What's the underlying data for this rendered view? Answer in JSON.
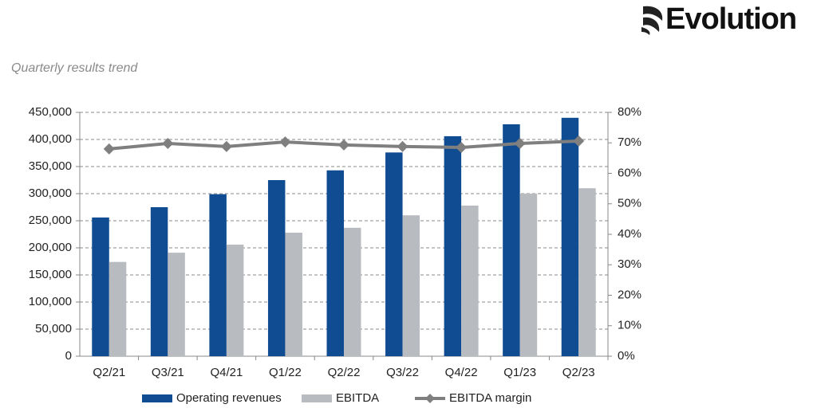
{
  "logo": "Evolution",
  "chart_data": {
    "type": "bar-line",
    "subtitle": "Quarterly results trend",
    "categories": [
      "Q2/21",
      "Q3/21",
      "Q4/21",
      "Q1/22",
      "Q2/22",
      "Q3/22",
      "Q4/22",
      "Q1/23",
      "Q2/23"
    ],
    "series": [
      {
        "name": "Operating revenues",
        "type": "bar",
        "color": "#0f4c92",
        "axis": "y",
        "values": [
          256000,
          275000,
          299000,
          325000,
          343000,
          376000,
          406000,
          428000,
          440000
        ]
      },
      {
        "name": "EBITDA",
        "type": "bar",
        "color": "#b8bbbf",
        "axis": "y",
        "values": [
          174000,
          191000,
          206000,
          228000,
          237000,
          260000,
          278000,
          300000,
          310000
        ]
      },
      {
        "name": "EBITDA margin",
        "type": "line",
        "color": "#7f7f7f",
        "axis": "y2",
        "values": [
          68.0,
          69.8,
          68.8,
          70.3,
          69.3,
          68.8,
          68.5,
          69.8,
          70.6
        ]
      }
    ],
    "ylim": [
      0,
      450000
    ],
    "yticks": [
      {
        "value": 0,
        "label": "0"
      },
      {
        "value": 50000,
        "label": "50,000"
      },
      {
        "value": 100000,
        "label": "100,000"
      },
      {
        "value": 150000,
        "label": "150,000"
      },
      {
        "value": 200000,
        "label": "200,000"
      },
      {
        "value": 250000,
        "label": "250,000"
      },
      {
        "value": 300000,
        "label": "300,000"
      },
      {
        "value": 350000,
        "label": "350,000"
      },
      {
        "value": 400000,
        "label": "400,000"
      },
      {
        "value": 450000,
        "label": "450,000"
      }
    ],
    "y2lim": [
      0,
      80
    ],
    "y2ticks": [
      {
        "value": 0,
        "label": "0%"
      },
      {
        "value": 10,
        "label": "10%"
      },
      {
        "value": 20,
        "label": "20%"
      },
      {
        "value": 30,
        "label": "30%"
      },
      {
        "value": 40,
        "label": "40%"
      },
      {
        "value": 50,
        "label": "50%"
      },
      {
        "value": 60,
        "label": "60%"
      },
      {
        "value": 70,
        "label": "70%"
      },
      {
        "value": 80,
        "label": "80%"
      }
    ],
    "grid": true,
    "legend": "bottom"
  }
}
